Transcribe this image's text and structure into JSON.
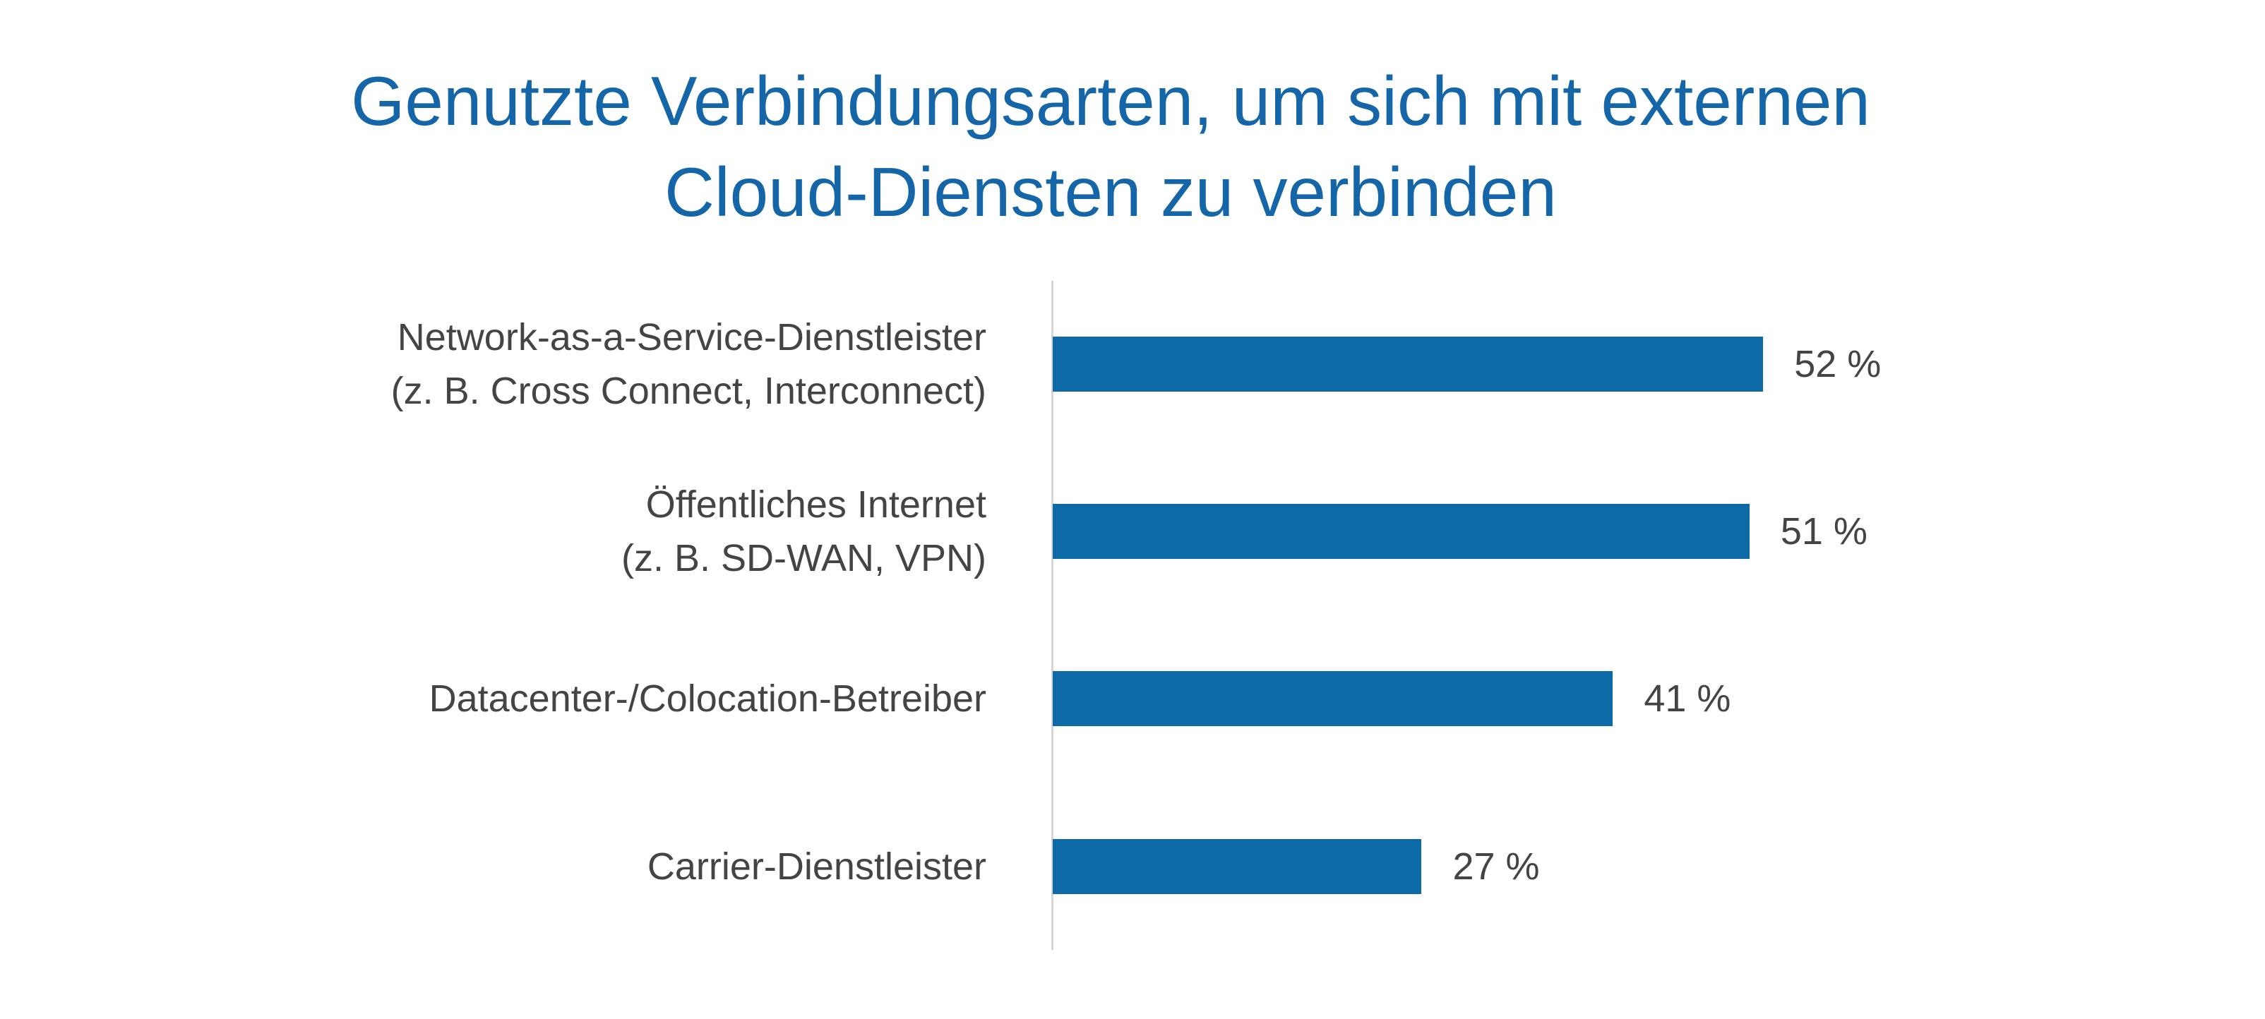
{
  "chart_data": {
    "type": "bar",
    "orientation": "horizontal",
    "title": "Genutzte Verbindungsarten, um sich mit externen Cloud-Diensten zu verbinden",
    "title_lines": [
      "Genutzte Verbindungsarten, um sich mit externen",
      "Cloud-Diensten zu verbinden"
    ],
    "categories": [
      [
        "Network-as-a-Service-Dienstleister",
        "(z. B. Cross Connect, Interconnect)"
      ],
      [
        "Öffentliches Internet",
        "(z. B. SD-WAN, VPN)"
      ],
      [
        "Datacenter-/Colocation-Betreiber"
      ],
      [
        "Carrier-Dienstleister"
      ]
    ],
    "values": [
      52,
      51,
      41,
      27
    ],
    "value_labels": [
      "52 %",
      "51 %",
      "41 %",
      "27 %"
    ],
    "unit": "%",
    "xlabel": "",
    "ylabel": "",
    "grid": false,
    "bar_color": "#0d69a7"
  }
}
